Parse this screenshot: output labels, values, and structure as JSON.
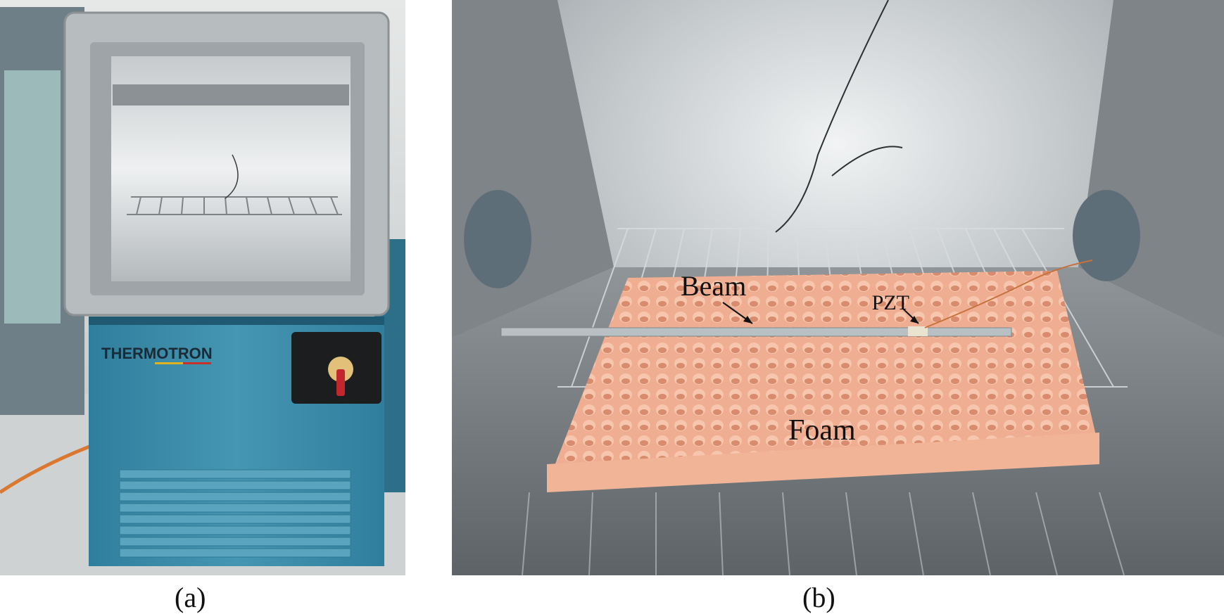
{
  "panel_a": {
    "caption": "(a)",
    "brand_text": "THERMOTRON",
    "colors": {
      "cabinet": "#3f8fad",
      "door_frame": "#b7bcbf",
      "interior": "#d7dadc",
      "floor": "#cfd2d2"
    }
  },
  "panel_b": {
    "caption": "(b)",
    "labels": {
      "beam": "Beam",
      "pzt": "PZT",
      "foam": "Foam"
    },
    "colors": {
      "foam": "#eea88a",
      "beam": "#b9c0c4",
      "chamber": "#8c9296"
    }
  }
}
